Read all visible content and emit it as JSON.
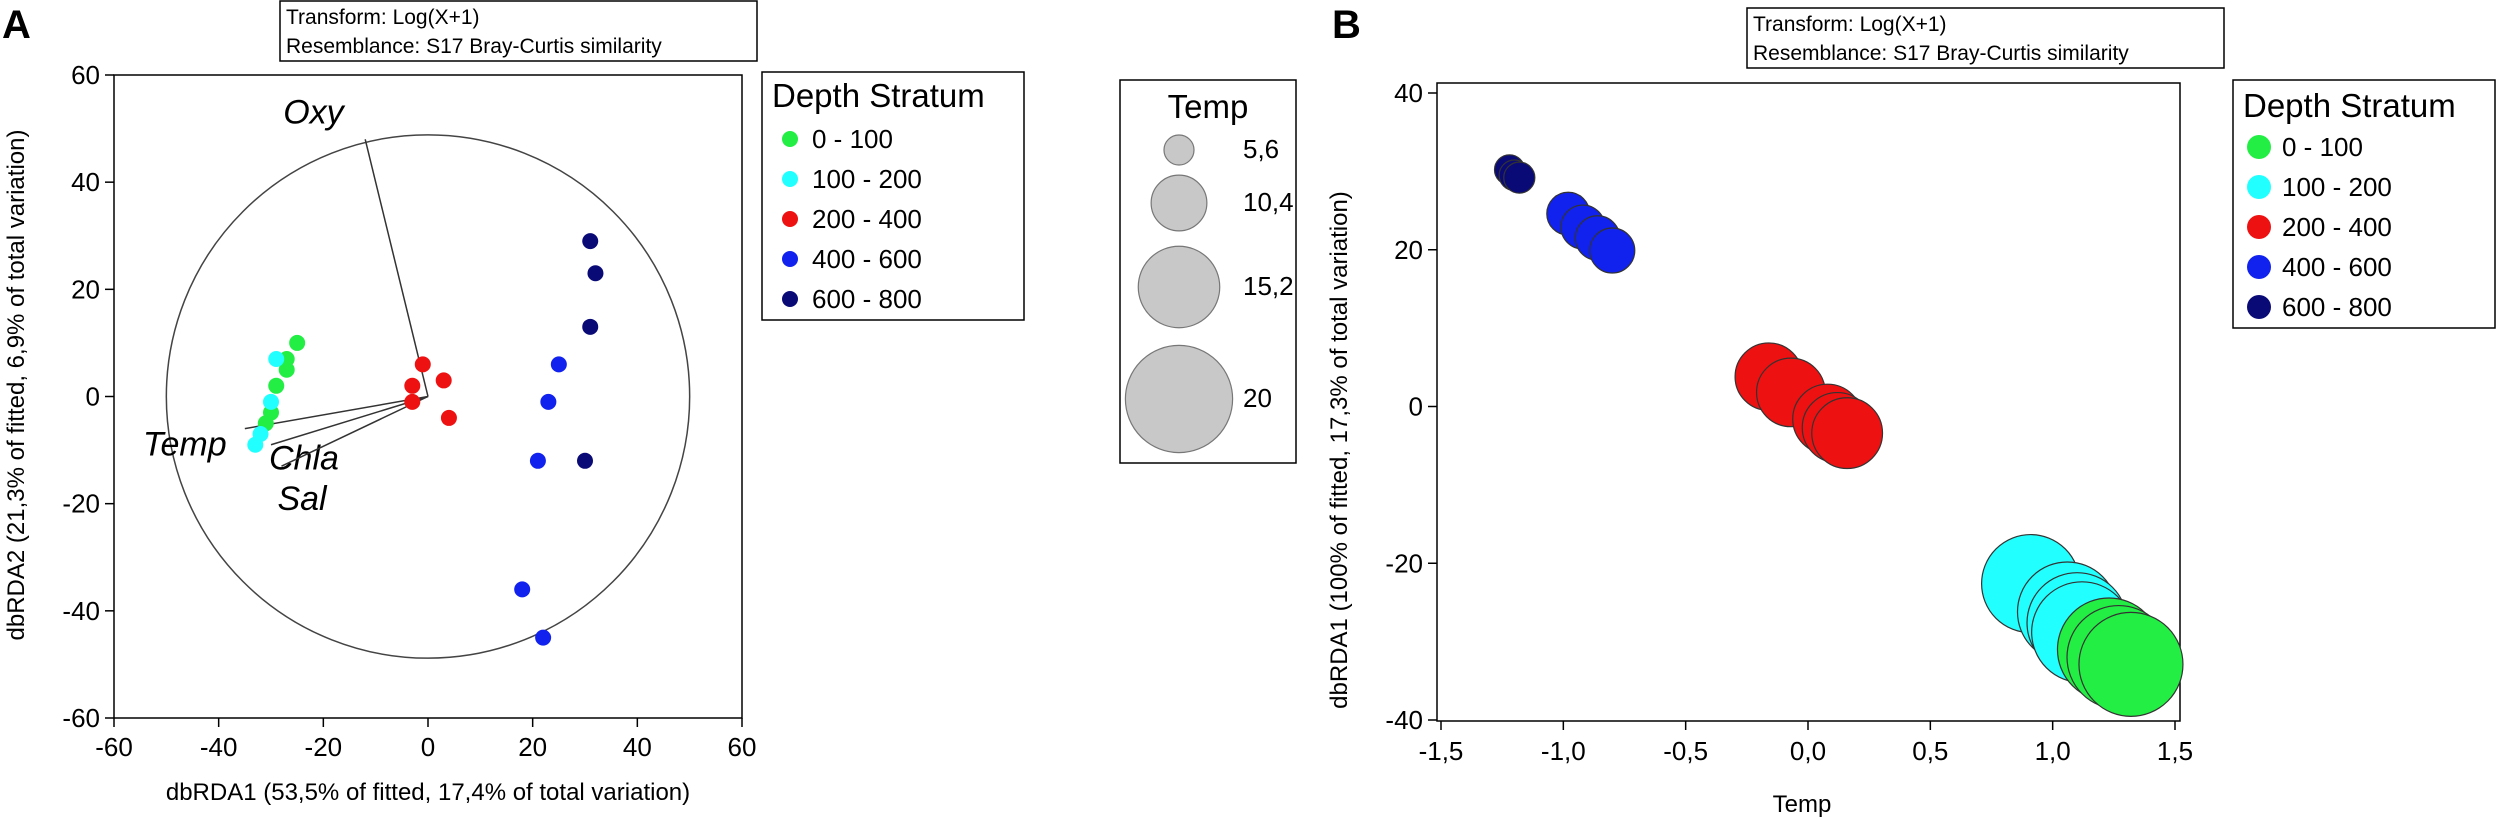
{
  "panels": {
    "a": {
      "letter": "A",
      "transform": "Transform: Log(X+1)",
      "resemblance": "Resemblance: S17 Bray-Curtis similarity",
      "legend_title": "Depth Stratum",
      "vectors": [
        {
          "label": "Oxy",
          "x": -12,
          "y": 48
        },
        {
          "label": "Temp",
          "x": -35,
          "y": -6
        },
        {
          "label": "Chla",
          "x": -30,
          "y": -9
        },
        {
          "label": "Sal",
          "x": -28,
          "y": -13
        }
      ]
    },
    "b": {
      "letter": "B",
      "transform": "Transform: Log(X+1)",
      "resemblance": "Resemblance: S17 Bray-Curtis similarity",
      "legend_title": "Depth Stratum",
      "size_legend": {
        "title": "Temp",
        "items": [
          {
            "label": "5,6",
            "value": 5.6
          },
          {
            "label": "10,4",
            "value": 10.4
          },
          {
            "label": "15,2",
            "value": 15.2
          },
          {
            "label": "20",
            "value": 20
          }
        ]
      }
    }
  },
  "strata": [
    {
      "label": "0 - 100",
      "color": "#22ee44"
    },
    {
      "label": "100 - 200",
      "color": "#22ffff"
    },
    {
      "label": "200 - 400",
      "color": "#ee1111"
    },
    {
      "label": "400 - 600",
      "color": "#1122ee"
    },
    {
      "label": "600 - 800",
      "color": "#0a0a77"
    }
  ],
  "chart_data": [
    {
      "type": "scatter",
      "title": "A",
      "xlabel": "dbRDA1 (53,5% of fitted, 17,4% of total variation)",
      "ylabel": "dbRDA2 (21,3% of fitted, 6,9% of total variation)",
      "xlim": [
        -60,
        60
      ],
      "ylim": [
        -60,
        60
      ],
      "xticks": [
        -60,
        -40,
        -20,
        0,
        20,
        40,
        60
      ],
      "yticks": [
        -60,
        -40,
        -20,
        0,
        20,
        40,
        60
      ],
      "xtick_labels": [
        "-60",
        "-40",
        "-20",
        "0",
        "20",
        "40",
        "60"
      ],
      "ytick_labels": [
        "-60",
        "-40",
        "-20",
        "0",
        "20",
        "40",
        "60"
      ],
      "correlation_circle_radius": 50,
      "series": [
        {
          "name": "0 - 100",
          "points": [
            [
              -25,
              10
            ],
            [
              -27,
              7
            ],
            [
              -27,
              5
            ],
            [
              -29,
              2
            ],
            [
              -30,
              -3
            ],
            [
              -31,
              -5
            ]
          ]
        },
        {
          "name": "100 - 200",
          "points": [
            [
              -29,
              7
            ],
            [
              -30,
              -1
            ],
            [
              -32,
              -7
            ],
            [
              -33,
              -9
            ]
          ]
        },
        {
          "name": "200 - 400",
          "points": [
            [
              -1,
              6
            ],
            [
              -3,
              2
            ],
            [
              3,
              3
            ],
            [
              -3,
              -1
            ],
            [
              4,
              -4
            ]
          ]
        },
        {
          "name": "400 - 600",
          "points": [
            [
              25,
              6
            ],
            [
              23,
              -1
            ],
            [
              21,
              -12
            ],
            [
              18,
              -36
            ],
            [
              22,
              -45
            ]
          ]
        },
        {
          "name": "600 - 800",
          "points": [
            [
              31,
              29
            ],
            [
              32,
              23
            ],
            [
              31,
              13
            ],
            [
              30,
              -12
            ]
          ]
        }
      ]
    },
    {
      "type": "scatter",
      "title": "B",
      "xlabel": "Temp",
      "ylabel": "dbRDA1 (100% of fitted, 17,3% of total variation)",
      "xlim": [
        -1.5,
        1.5
      ],
      "ylim": [
        -40,
        40
      ],
      "xticks": [
        -1.5,
        -1.0,
        -0.5,
        0.0,
        0.5,
        1.0,
        1.5
      ],
      "yticks": [
        -40,
        -20,
        0,
        20,
        40
      ],
      "xtick_labels": [
        "-1,5",
        "-1,0",
        "-0,5",
        "0,0",
        "0,5",
        "1,0",
        "1,5"
      ],
      "ytick_labels": [
        "-40",
        "-20",
        "0",
        "20",
        "40"
      ],
      "series": [
        {
          "name": "600 - 800",
          "points": [
            [
              -1.22,
              30.2,
              5.6
            ],
            [
              -1.2,
              29.5,
              5.7
            ],
            [
              -1.18,
              29.2,
              5.8
            ]
          ]
        },
        {
          "name": "400 - 600",
          "points": [
            [
              -0.98,
              24.6,
              8.0
            ],
            [
              -0.92,
              22.9,
              8.2
            ],
            [
              -0.86,
              21.5,
              8.3
            ],
            [
              -0.8,
              19.9,
              8.4
            ]
          ]
        },
        {
          "name": "200 - 400",
          "points": [
            [
              -0.16,
              3.8,
              12.6
            ],
            [
              -0.07,
              1.8,
              12.8
            ],
            [
              0.08,
              -1.6,
              13.0
            ],
            [
              0.12,
              -2.7,
              13.1
            ],
            [
              0.16,
              -3.4,
              13.2
            ]
          ]
        },
        {
          "name": "100 - 200",
          "points": [
            [
              0.91,
              -22.6,
              18.3
            ],
            [
              1.06,
              -26.2,
              18.6
            ],
            [
              1.1,
              -27.6,
              18.7
            ],
            [
              1.12,
              -28.8,
              18.8
            ]
          ]
        },
        {
          "name": "0 - 100",
          "points": [
            [
              1.23,
              -31.0,
              19.2
            ],
            [
              1.27,
              -32.0,
              19.3
            ],
            [
              1.32,
              -32.9,
              19.4
            ]
          ]
        }
      ]
    }
  ]
}
